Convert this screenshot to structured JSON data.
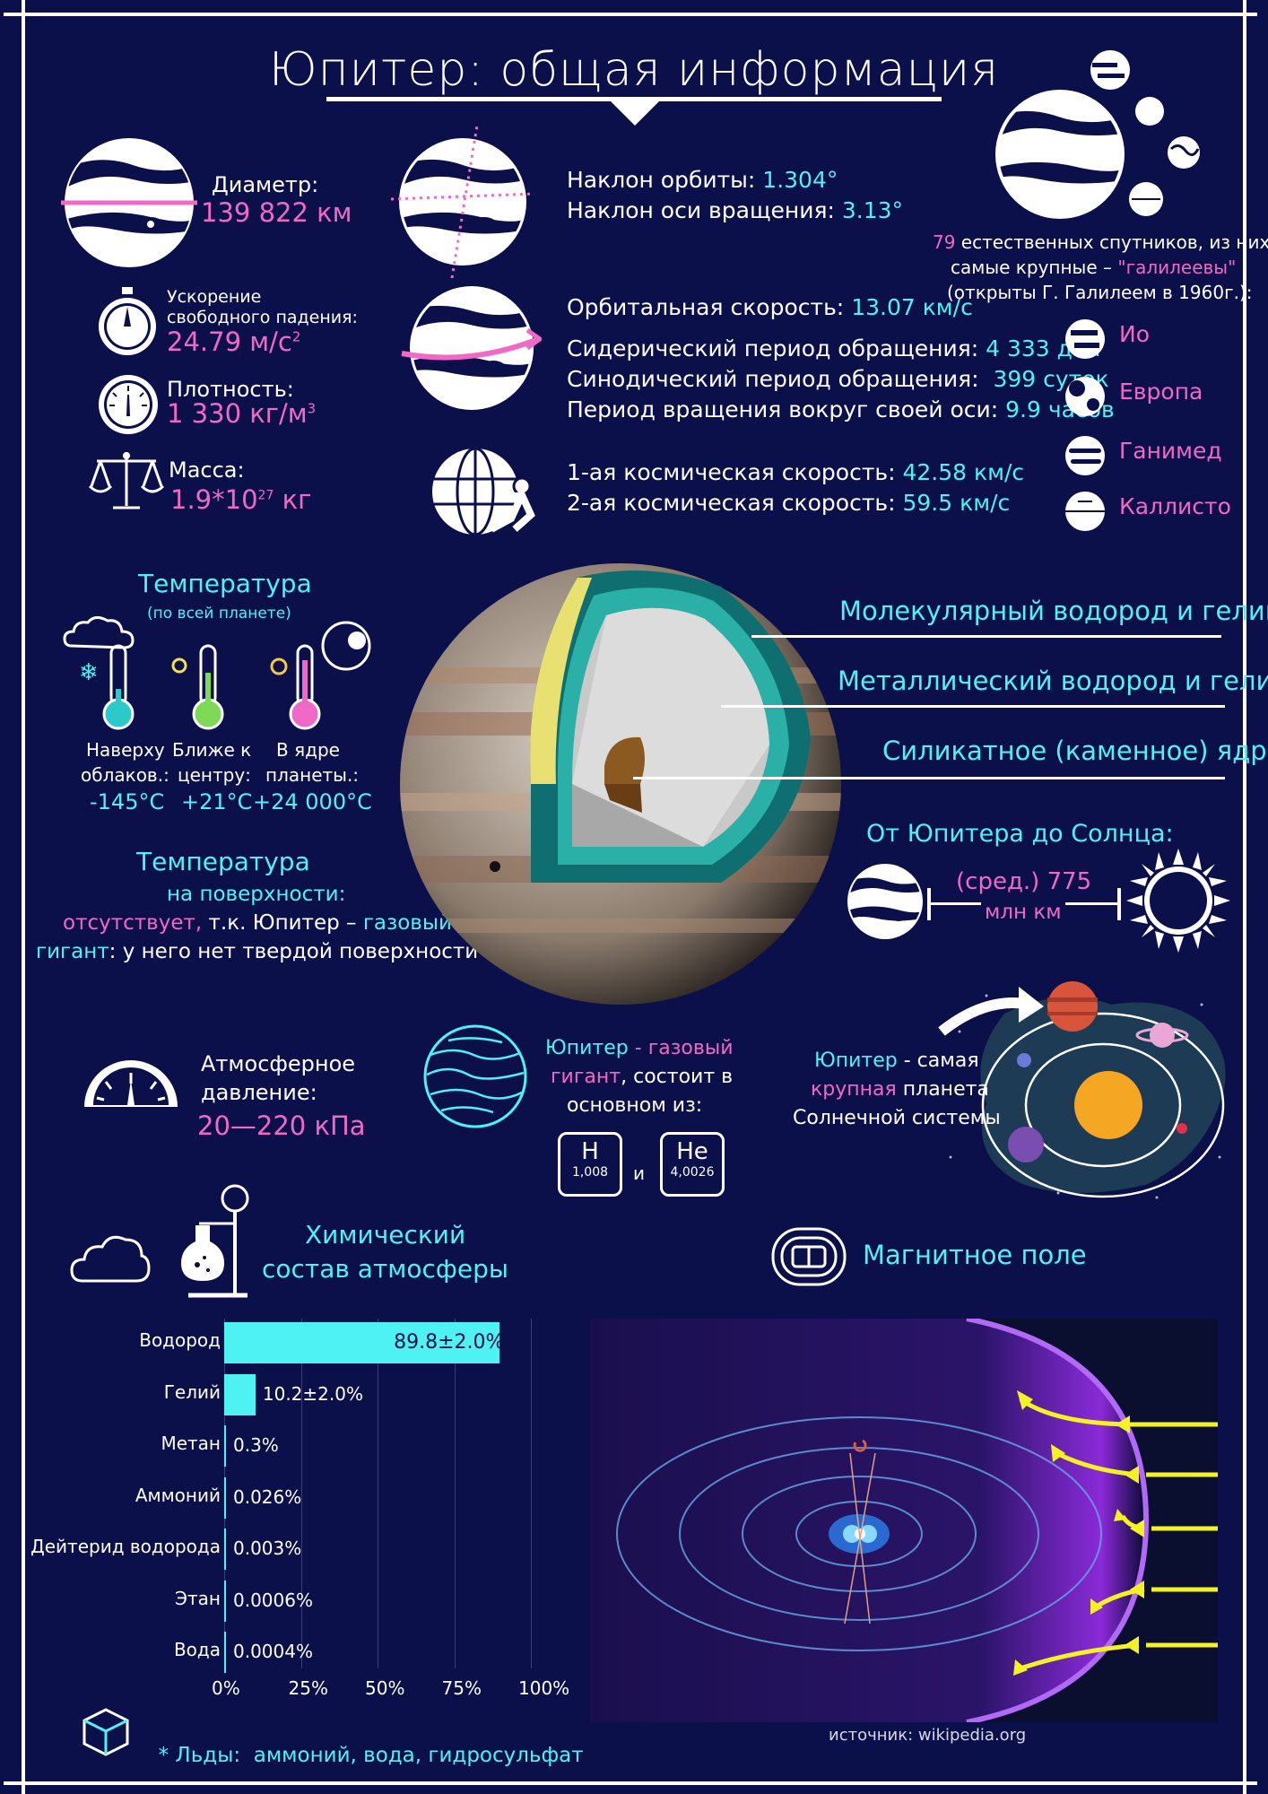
{
  "title": "Юпитер: общая информация",
  "diameter": {
    "label": "Диаметр:",
    "value": "139 822 км"
  },
  "gravity": {
    "label1": "Ускорение",
    "label2": "свободного падения:",
    "value": "24.79 м/с",
    "sup": "2"
  },
  "density": {
    "label": "Плотность:",
    "value": "1 330 кг/м",
    "sup": "3"
  },
  "mass": {
    "label": "Масса:",
    "value_a": "1.9*10",
    "sup": "27",
    "value_b": " кг"
  },
  "orbit": {
    "incl_label": "Наклон орбиты: ",
    "incl_value": "1.304°",
    "axis_label": "Наклон оси вращения: ",
    "axis_value": "3.13°",
    "speed_label": "Орбитальная скорость: ",
    "speed_value": "13.07 км/с",
    "sidereal_label": "Сидерический период обращения: ",
    "sidereal_value": "4 333 дня",
    "synodic_label": "Синодический период обращения:  ",
    "synodic_value": "399 суток",
    "rotation_label": "Период вращения вокруг своей оси: ",
    "rotation_value": "9.9 часов",
    "cosmic1_label": "1-ая космическая скорость: ",
    "cosmic1_value": "42.58 км/с",
    "cosmic2_label": "2-ая космическая скорость: ",
    "cosmic2_value": "59.5 км/с"
  },
  "moons": {
    "count": "79",
    "line1": " естественных спутников, из них",
    "line2a": "самые крупные – ",
    "line2b": "\"галилеевы\"",
    "line3": "(открыты Г. Галилеем в 1960г.):",
    "items": [
      "Ио",
      "Европа",
      "Ганимед",
      "Каллисто"
    ]
  },
  "temperature": {
    "title": "Температура",
    "subtitle": "(по всей планете)",
    "cols": [
      {
        "label1": "Наверху",
        "label2": "облаков.:",
        "value": "-145°C"
      },
      {
        "label1": "Ближе к",
        "label2": "центру:",
        "value": "+21°C"
      },
      {
        "label1": "В ядре",
        "label2": "планеты.:",
        "value": "+24 000°C"
      }
    ]
  },
  "surface_temp": {
    "title": "Температура",
    "line1": "на поверхности:",
    "l2a": "отсутствует,",
    "l2b": " т.к. Юпитер – ",
    "l2c": "газовый",
    "l3a": "гигант",
    "l3b": ": у него нет твердой поверхности"
  },
  "layers": [
    "Молекулярный водород и гелий",
    "Металлический водород и гелий",
    "Силикатное (каменное) ядро"
  ],
  "sun_distance": {
    "title": "От Юпитера до Солнца:",
    "line1": "(сред.) 775",
    "line2": "млн км"
  },
  "pressure": {
    "label1": "Атмосферное",
    "label2": "давление:",
    "value": "20—220 кПа"
  },
  "gas": {
    "l1a": "Юпитер",
    "l1b": " - ",
    "l1c": "газовый",
    "l2a": "гигант",
    "l2b": ", состоит в",
    "l3": "основном из:",
    "h": {
      "symbol": "H",
      "mass": "1,008"
    },
    "and": "и",
    "he": {
      "symbol": "He",
      "mass": "4,0026"
    }
  },
  "largest": {
    "l1a": "Юпитер",
    "l1b": " - самая",
    "l2a": "крупная",
    "l2b": " планета",
    "l3": "Солнечной системы"
  },
  "chem": {
    "title1": "Химический",
    "title2": "состав атмосферы"
  },
  "magnetic": {
    "title": "Магнитное поле"
  },
  "chart_data": {
    "type": "bar",
    "orientation": "horizontal",
    "categories": [
      "Водород",
      "Гелий",
      "Метан",
      "Аммоний",
      "Дейтерид водорода",
      "Этан",
      "Вода"
    ],
    "values": [
      89.8,
      10.2,
      0.3,
      0.026,
      0.003,
      0.0006,
      0.0004
    ],
    "value_labels": [
      "89.8±2.0%",
      "10.2±2.0%",
      "0.3%",
      "0.026%",
      "0.003%",
      "0.0006%",
      "0.0004%"
    ],
    "xticks": [
      "0%",
      "25%",
      "50%",
      "75%",
      "100%"
    ],
    "xlim": [
      0,
      100
    ],
    "bar_color": "#4ef2f2"
  },
  "ices": {
    "a": "* Льды:",
    "b": "  аммоний, вода, гидросульфат"
  },
  "source": "источник: wikipedia.org",
  "colors": {
    "background": "#0b0f4a",
    "cyan": "#4ef2f2",
    "pink": "#f069c6",
    "yellow": "#f5f224",
    "purple": "#8a2ad8"
  }
}
